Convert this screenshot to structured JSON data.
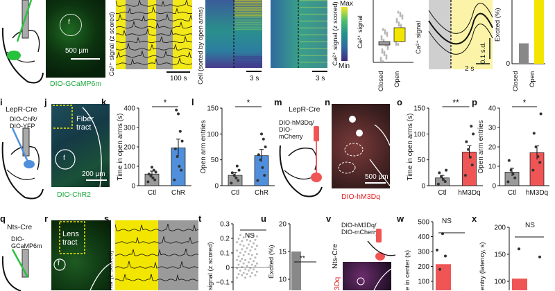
{
  "colors": {
    "gfp": "#27c23d",
    "yellow": "#f2e600",
    "gray": "#9a9a9a",
    "blue": "#4f8fdb",
    "red": "#f05555",
    "dark": "#111111"
  },
  "row1": {
    "microscope_label": "DIO-GCaMP6m",
    "scale_bar": "500 µm",
    "fiber_marker": "f",
    "trace_panel": {
      "ylabel": "Ca²⁺ signal (z scored)",
      "scale": "100 s"
    },
    "heatmap1": {
      "ylabel": "Cell (sorted by open arms)",
      "scale": "3 s"
    },
    "heatmap2": {
      "scale": "3 s",
      "colorbar_label": "Ca²⁺ signal (z scored)",
      "cmax": "Max",
      "cmin": "Min"
    },
    "scatter_panel": {
      "ylabel": "Ca²⁺ signal",
      "categories": [
        "Closed",
        "Open"
      ]
    },
    "mean_trace": {
      "scale_y": "0.1 s.d.",
      "scale_x": "2 s",
      "ylabel": "Ca²⁺ signal"
    },
    "excited_panel": {
      "ylabel": "Excited (%)",
      "categories": [
        "Closed",
        "Open"
      ]
    }
  },
  "row2": {
    "panel_i": {
      "letter": "i",
      "line": "LepR-Cre",
      "virus": "DIO-ChR/\nDIO-YFP"
    },
    "panel_j": {
      "letter": "j",
      "tract": "Fiber\ntract",
      "fiber_marker": "f",
      "scale": "200 µm",
      "label": "DIO-ChR2"
    },
    "panel_n": {
      "letter": "n",
      "scale": "500 µm",
      "label": "DIO-hM3Dq"
    },
    "panel_m": {
      "letter": "m",
      "line": "LepR-Cre",
      "virus": "DIO-hM3Dq/\nDIO-\nmCherry"
    }
  },
  "row3": {
    "panel_q": {
      "letter": "q",
      "line": "Nts-Cre",
      "virus": "DIO-\nGCaMP6m"
    },
    "panel_r": {
      "letter": "r",
      "tract": "Lens\ntract",
      "fiber_marker": "f"
    },
    "panel_s": {
      "letter": "s",
      "ylabel": "nal (z scored)"
    },
    "panel_t": {
      "letter": "t",
      "ylabel": "signal (z scored)",
      "sig": "NS"
    },
    "panel_u": {
      "letter": "u",
      "ylabel": "Excited (%)",
      "sig": "**"
    },
    "panel_v": {
      "letter": "v",
      "line": "Nts-Cre",
      "virus": "DIO-hM3Dq/\nDIO-mCherry",
      "label": "3Dq"
    },
    "panel_w": {
      "letter": "w",
      "ylabel": "e in center (s)",
      "sig": "NS"
    },
    "panel_x": {
      "letter": "x",
      "ylabel": "entry (latency, s)",
      "sig": "NS"
    }
  },
  "chart_data": [
    {
      "id": "panel_e_scatter",
      "type": "bar",
      "title": "",
      "ylabel": "Ca²⁺ signal",
      "categories": [
        "Closed",
        "Open"
      ],
      "values": [
        -0.05,
        0.2
      ],
      "colors": [
        "#9a9a9a",
        "#f2e600"
      ]
    },
    {
      "id": "panel_h_excited",
      "type": "bar",
      "ylabel": "Excited (%)",
      "categories": [
        "Closed",
        "Open"
      ],
      "values": [
        8,
        25
      ],
      "ylim": [
        0,
        25
      ],
      "yticks": [
        "0"
      ],
      "colors": [
        "#888888",
        "#f2e600"
      ]
    },
    {
      "id": "panel_k",
      "type": "bar",
      "letter": "k",
      "ylabel": "Time in open arms (s)",
      "categories": [
        "Ctl",
        "ChR"
      ],
      "values": [
        60,
        195
      ],
      "errors": [
        15,
        45
      ],
      "points": [
        [
          20,
          30,
          40,
          50,
          60,
          70,
          80,
          95
        ],
        [
          30,
          80,
          100,
          150,
          190,
          230,
          280,
          370,
          390
        ]
      ],
      "ylim": [
        0,
        400
      ],
      "yticks": [
        "0",
        "100",
        "200",
        "300",
        "400"
      ],
      "colors": [
        "#9a9a9a",
        "#4f8fdb"
      ],
      "sig": "*"
    },
    {
      "id": "panel_l",
      "type": "bar",
      "letter": "l",
      "ylabel": "Open arm entries",
      "categories": [
        "Ctl",
        "ChR"
      ],
      "values": [
        20,
        58
      ],
      "errors": [
        6,
        12
      ],
      "points": [
        [
          5,
          10,
          15,
          20,
          25,
          30,
          38
        ],
        [
          10,
          20,
          35,
          50,
          60,
          75,
          90,
          100
        ]
      ],
      "ylim": [
        0,
        150
      ],
      "yticks": [
        "0",
        "50",
        "100",
        "150"
      ],
      "colors": [
        "#9a9a9a",
        "#4f8fdb"
      ],
      "sig": "*"
    },
    {
      "id": "panel_o",
      "type": "bar",
      "letter": "o",
      "ylabel": "Time in open arms (s)",
      "categories": [
        "Ctl",
        "hM3Dq"
      ],
      "values": [
        15,
        65
      ],
      "errors": [
        5,
        12
      ],
      "points": [
        [
          3,
          8,
          12,
          18,
          25,
          30
        ],
        [
          20,
          40,
          55,
          70,
          85,
          100,
          115
        ]
      ],
      "ylim": [
        0,
        150
      ],
      "yticks": [
        "0",
        "50",
        "100",
        "150"
      ],
      "colors": [
        "#9a9a9a",
        "#f05555"
      ],
      "sig": "**"
    },
    {
      "id": "panel_p",
      "type": "bar",
      "letter": "p",
      "ylabel": "Open arm entries",
      "categories": [
        "Ctl",
        "hM3Dq"
      ],
      "values": [
        7,
        17
      ],
      "errors": [
        2,
        3.5
      ],
      "points": [
        [
          2,
          4,
          6,
          8,
          13
        ],
        [
          8,
          12,
          15,
          20,
          27,
          37
        ]
      ],
      "ylim": [
        0,
        40
      ],
      "yticks": [
        "0",
        "10",
        "20",
        "30",
        "40"
      ],
      "colors": [
        "#9a9a9a",
        "#f05555"
      ],
      "sig": "*"
    },
    {
      "id": "panel_t_scatter",
      "type": "scatter",
      "ylabel": "signal (z scored)",
      "yticks": [
        "0.3",
        "0.2",
        "0.1",
        "0",
        "−0.1"
      ],
      "ylim": [
        -0.1,
        0.3
      ]
    },
    {
      "id": "panel_u_bar",
      "type": "bar",
      "ylabel": "Excited (%)",
      "yticks": [
        "20",
        "15",
        "10"
      ],
      "ylim": [
        10,
        20
      ],
      "values": [
        15
      ]
    },
    {
      "id": "panel_w_bar",
      "type": "bar",
      "ylabel": "e in center (s)",
      "yticks": [
        "500",
        "400",
        "300",
        "200",
        "100"
      ],
      "ylim": [
        100,
        500
      ],
      "values": [
        215
      ]
    },
    {
      "id": "panel_x_bar",
      "type": "bar",
      "ylabel": "entry (latency, s)",
      "yticks": [
        "200",
        "150",
        "100"
      ],
      "ylim": [
        100,
        200
      ],
      "values": [
        105
      ]
    }
  ]
}
